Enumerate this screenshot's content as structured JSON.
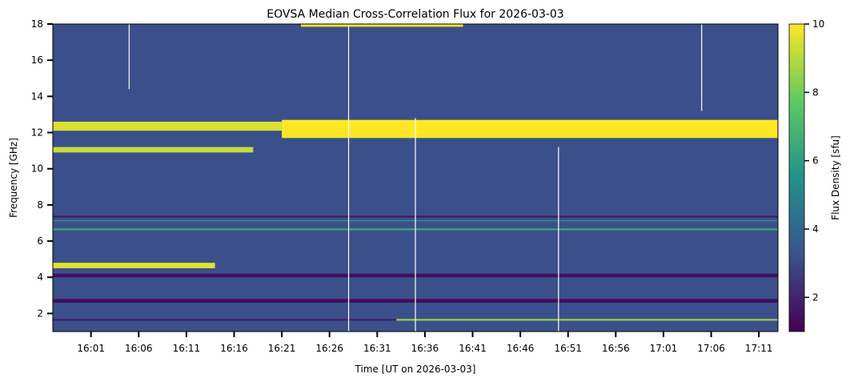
{
  "chart_data": {
    "type": "heatmap",
    "title": "EOVSA Median Cross-Correlation Flux for 2026-03-03",
    "xlabel": "Time [UT on 2026-03-03]",
    "ylabel": "Frequency [GHz]",
    "colorbar_label": "Flux Density [sfu]",
    "colormap": "viridis",
    "colormap_stops": [
      "#440154",
      "#3b528b",
      "#21918c",
      "#5ec962",
      "#fde725"
    ],
    "x_start": "15:57",
    "x_end": "17:13",
    "x_ticks": [
      "16:01",
      "16:06",
      "16:11",
      "16:16",
      "16:21",
      "16:26",
      "16:31",
      "16:36",
      "16:41",
      "16:46",
      "16:51",
      "16:56",
      "17:01",
      "17:06",
      "17:11"
    ],
    "ylim": [
      1,
      18
    ],
    "y_ticks": [
      2,
      4,
      6,
      8,
      10,
      12,
      14,
      16,
      18
    ],
    "clim": [
      1,
      10
    ],
    "colorbar_ticks": [
      2,
      4,
      6,
      8,
      10
    ],
    "background_level": 3.2,
    "features": [
      {
        "t0": "16:21",
        "t1": "17:13",
        "f0": 11.7,
        "f1": 12.7,
        "flux": 10
      },
      {
        "t0": "15:57",
        "t1": "16:21",
        "f0": 12.1,
        "f1": 12.6,
        "flux": 9.5
      },
      {
        "t0": "15:57",
        "t1": "16:18",
        "f0": 10.9,
        "f1": 11.2,
        "flux": 9.2
      },
      {
        "t0": "15:57",
        "t1": "16:14",
        "f0": 4.5,
        "f1": 4.8,
        "flux": 9.6
      },
      {
        "t0": "16:23",
        "t1": "16:40",
        "f0": 17.85,
        "f1": 18.0,
        "flux": 10
      },
      {
        "t0": "15:57",
        "t1": "17:13",
        "f0": 4.0,
        "f1": 4.2,
        "flux": 1.4
      },
      {
        "t0": "15:57",
        "t1": "17:13",
        "f0": 2.6,
        "f1": 2.8,
        "flux": 1.3
      },
      {
        "t0": "15:57",
        "t1": "17:13",
        "f0": 7.3,
        "f1": 7.4,
        "flux": 1.6
      },
      {
        "t0": "15:57",
        "t1": "17:13",
        "f0": 1.6,
        "f1": 1.7,
        "flux": 1.8
      },
      {
        "t0": "16:33",
        "t1": "17:13",
        "f0": 1.6,
        "f1": 1.7,
        "flux": 8.5
      },
      {
        "t0": "15:57",
        "t1": "17:13",
        "f0": 6.6,
        "f1": 6.7,
        "flux": 6.5
      },
      {
        "t0": "15:57",
        "t1": "17:13",
        "f0": 7.1,
        "f1": 7.15,
        "flux": 6.0
      }
    ],
    "gaps": [
      {
        "t": "16:05",
        "f0": 14.4,
        "f1": 18.0
      },
      {
        "t": "16:28",
        "f0": 1.0,
        "f1": 18.0
      },
      {
        "t": "16:35",
        "f0": 1.0,
        "f1": 12.8
      },
      {
        "t": "16:50",
        "f0": 1.0,
        "f1": 11.2
      },
      {
        "t": "17:05",
        "f0": 13.2,
        "f1": 18.0
      }
    ]
  }
}
